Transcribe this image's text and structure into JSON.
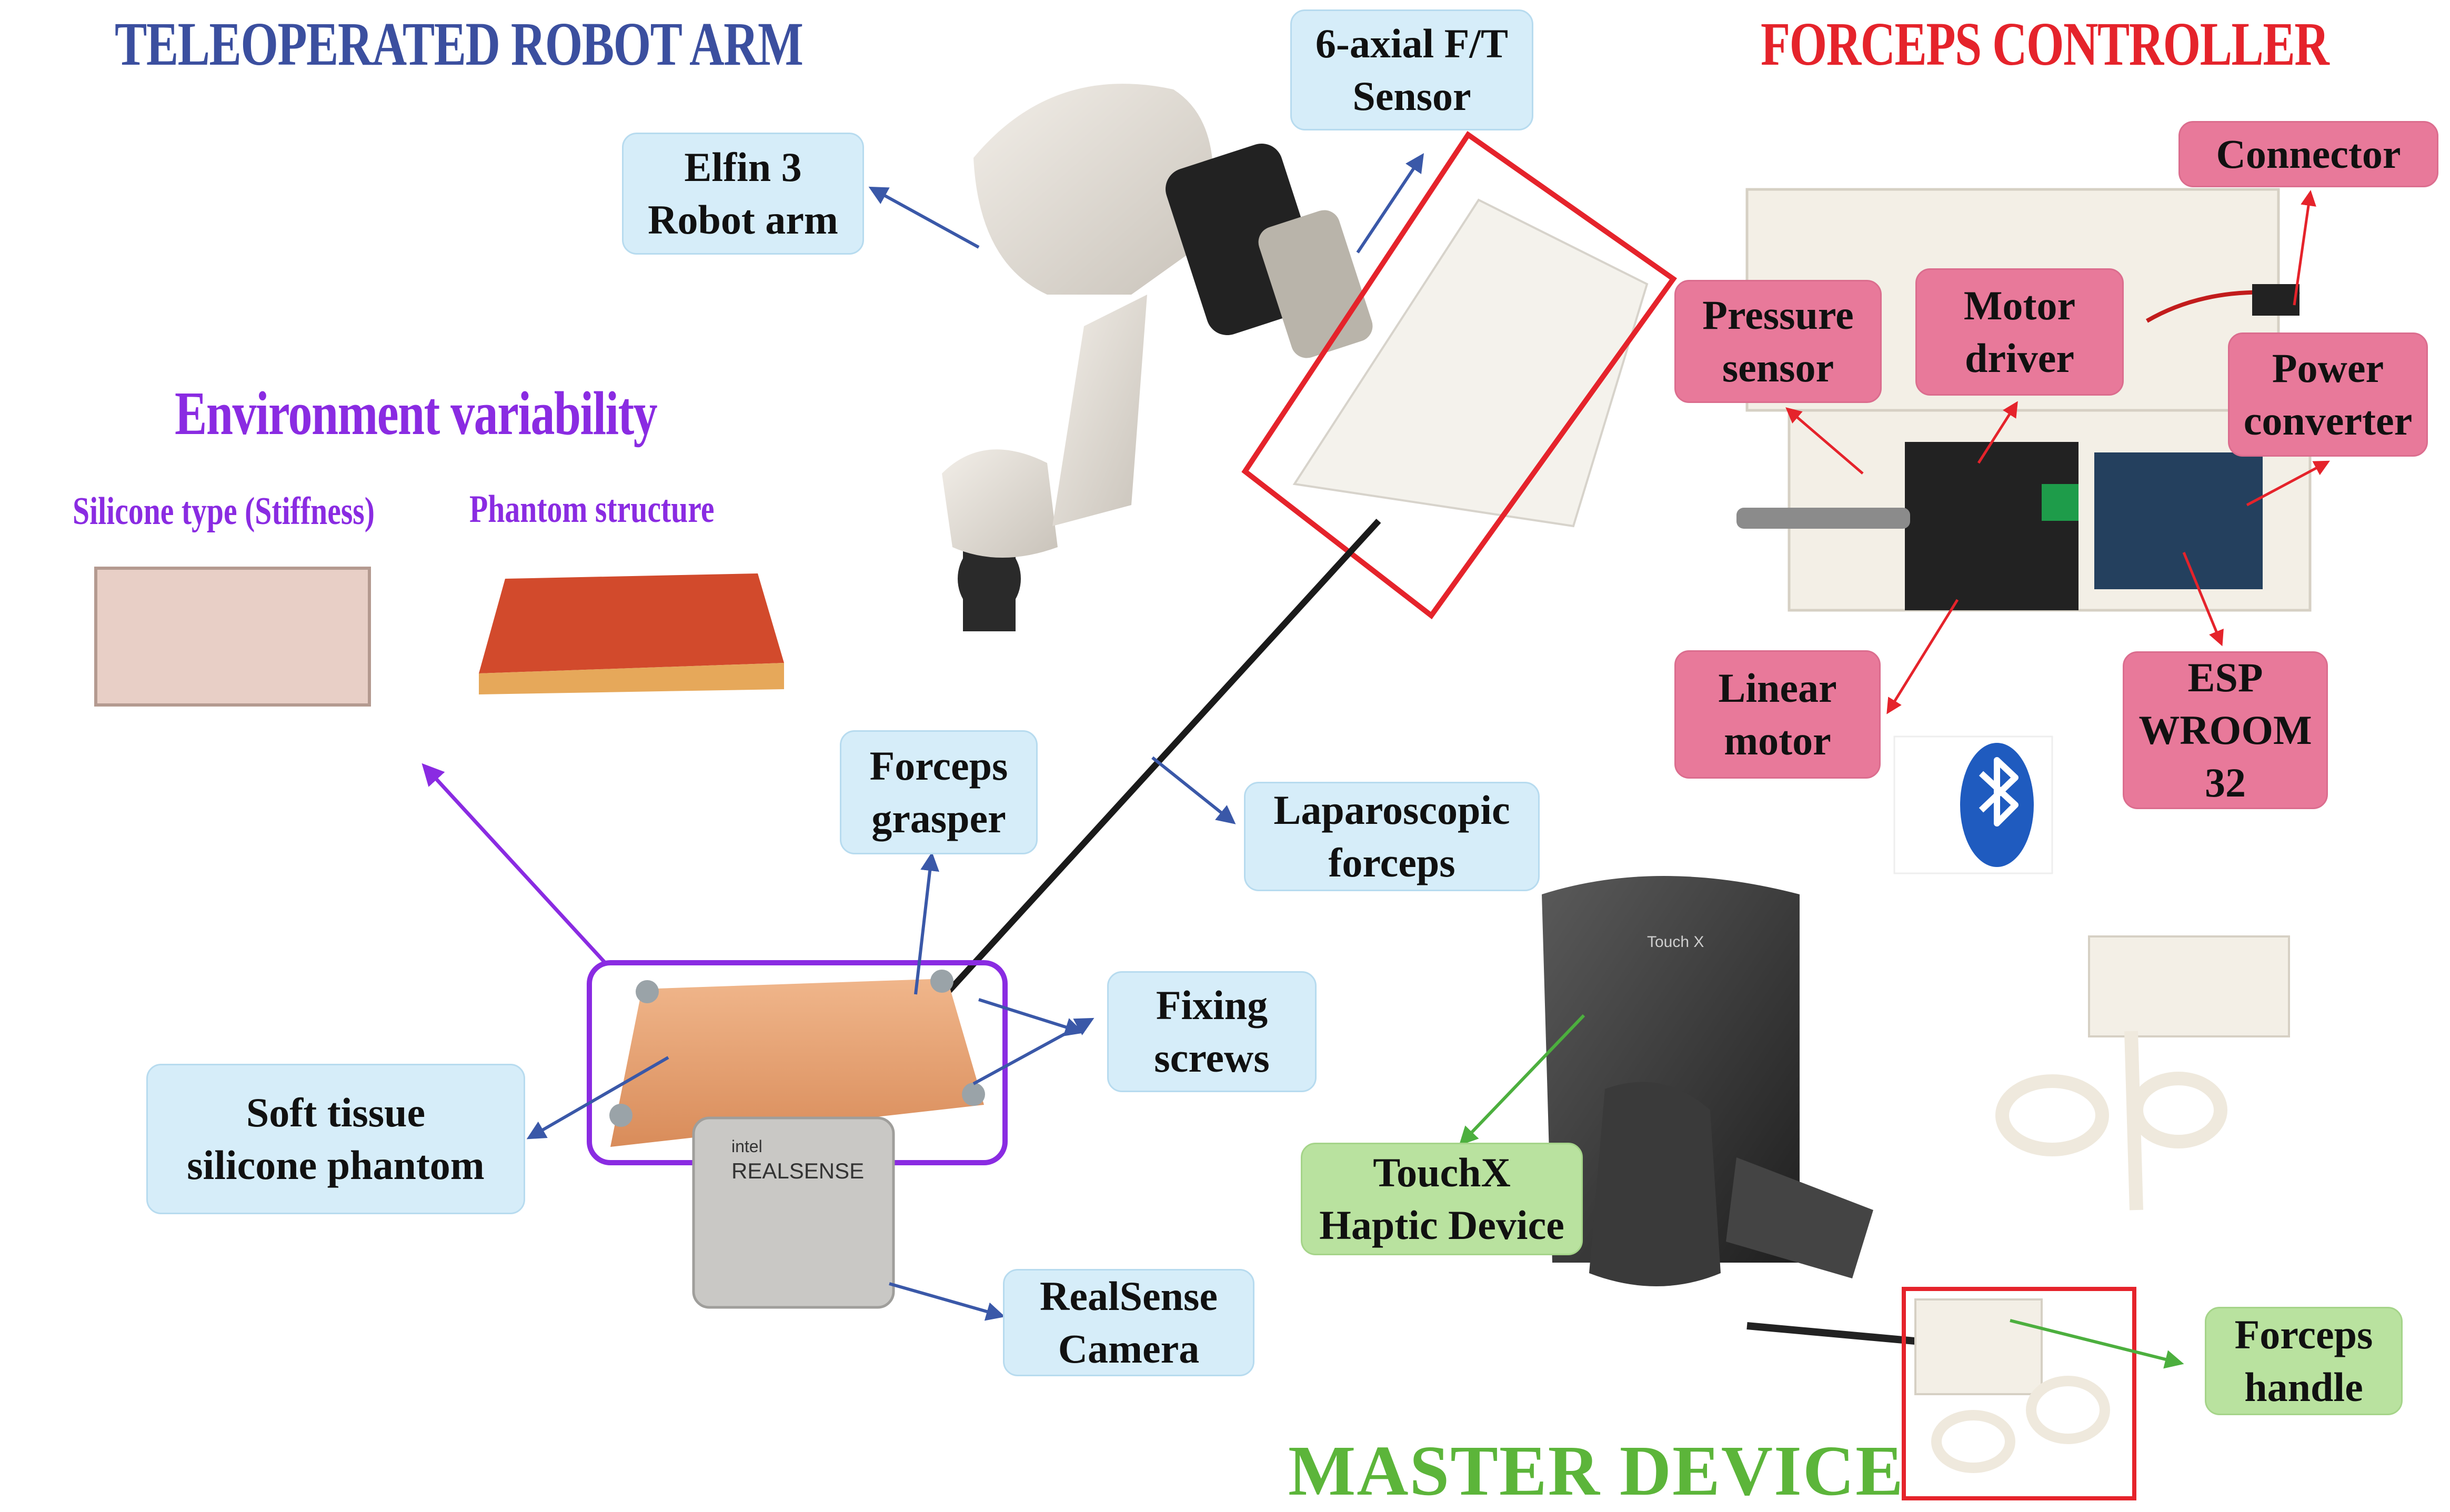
{
  "headers": {
    "robot": "TELEOPERATED ROBOT ARM",
    "forceps_controller": "FORCEPS CONTROLLER",
    "environment": "Environment variability",
    "master": "MASTER DEVICE"
  },
  "environment": {
    "silicone_type": "Silicone type (Stiffness)",
    "phantom_structure": "Phantom structure"
  },
  "labels": {
    "ft_sensor": [
      "6-axial F/T",
      "Sensor"
    ],
    "elfin": [
      "Elfin 3",
      "Robot arm"
    ],
    "forceps_grasper": [
      "Forceps",
      "grasper"
    ],
    "laparoscopic": [
      "Laparoscopic",
      "forceps"
    ],
    "fixing_screws": [
      "Fixing",
      "screws"
    ],
    "soft_tissue": [
      "Soft tissue",
      "silicone phantom"
    ],
    "realsense": [
      "RealSense",
      "Camera"
    ],
    "connector": [
      "Connector"
    ],
    "pressure_sensor": [
      "Pressure",
      "sensor"
    ],
    "motor_driver": [
      "Motor",
      "driver"
    ],
    "power_converter": [
      "Power",
      "converter"
    ],
    "linear_motor": [
      "Linear",
      "motor"
    ],
    "esp": [
      "ESP",
      "WROOM",
      "32"
    ],
    "touchx": [
      "TouchX",
      "Haptic Device"
    ],
    "forceps_handle": [
      "Forceps",
      "handle"
    ]
  },
  "device_text": {
    "camera_brand": "intel",
    "camera_name": "REALSENSE",
    "touchx_brand": "Touch X"
  },
  "icons": {
    "bluetooth": "bluetooth-icon"
  },
  "colors": {
    "robot_header": "#3b4f9f",
    "controller_header": "#e5232b",
    "environment_header": "#8a2be2",
    "master_header": "#5cb53a",
    "blue_arrow": "#3a58a8",
    "red_arrow": "#e5232b",
    "green_arrow": "#4caf3e",
    "purple_arrow": "#8a2be2"
  }
}
